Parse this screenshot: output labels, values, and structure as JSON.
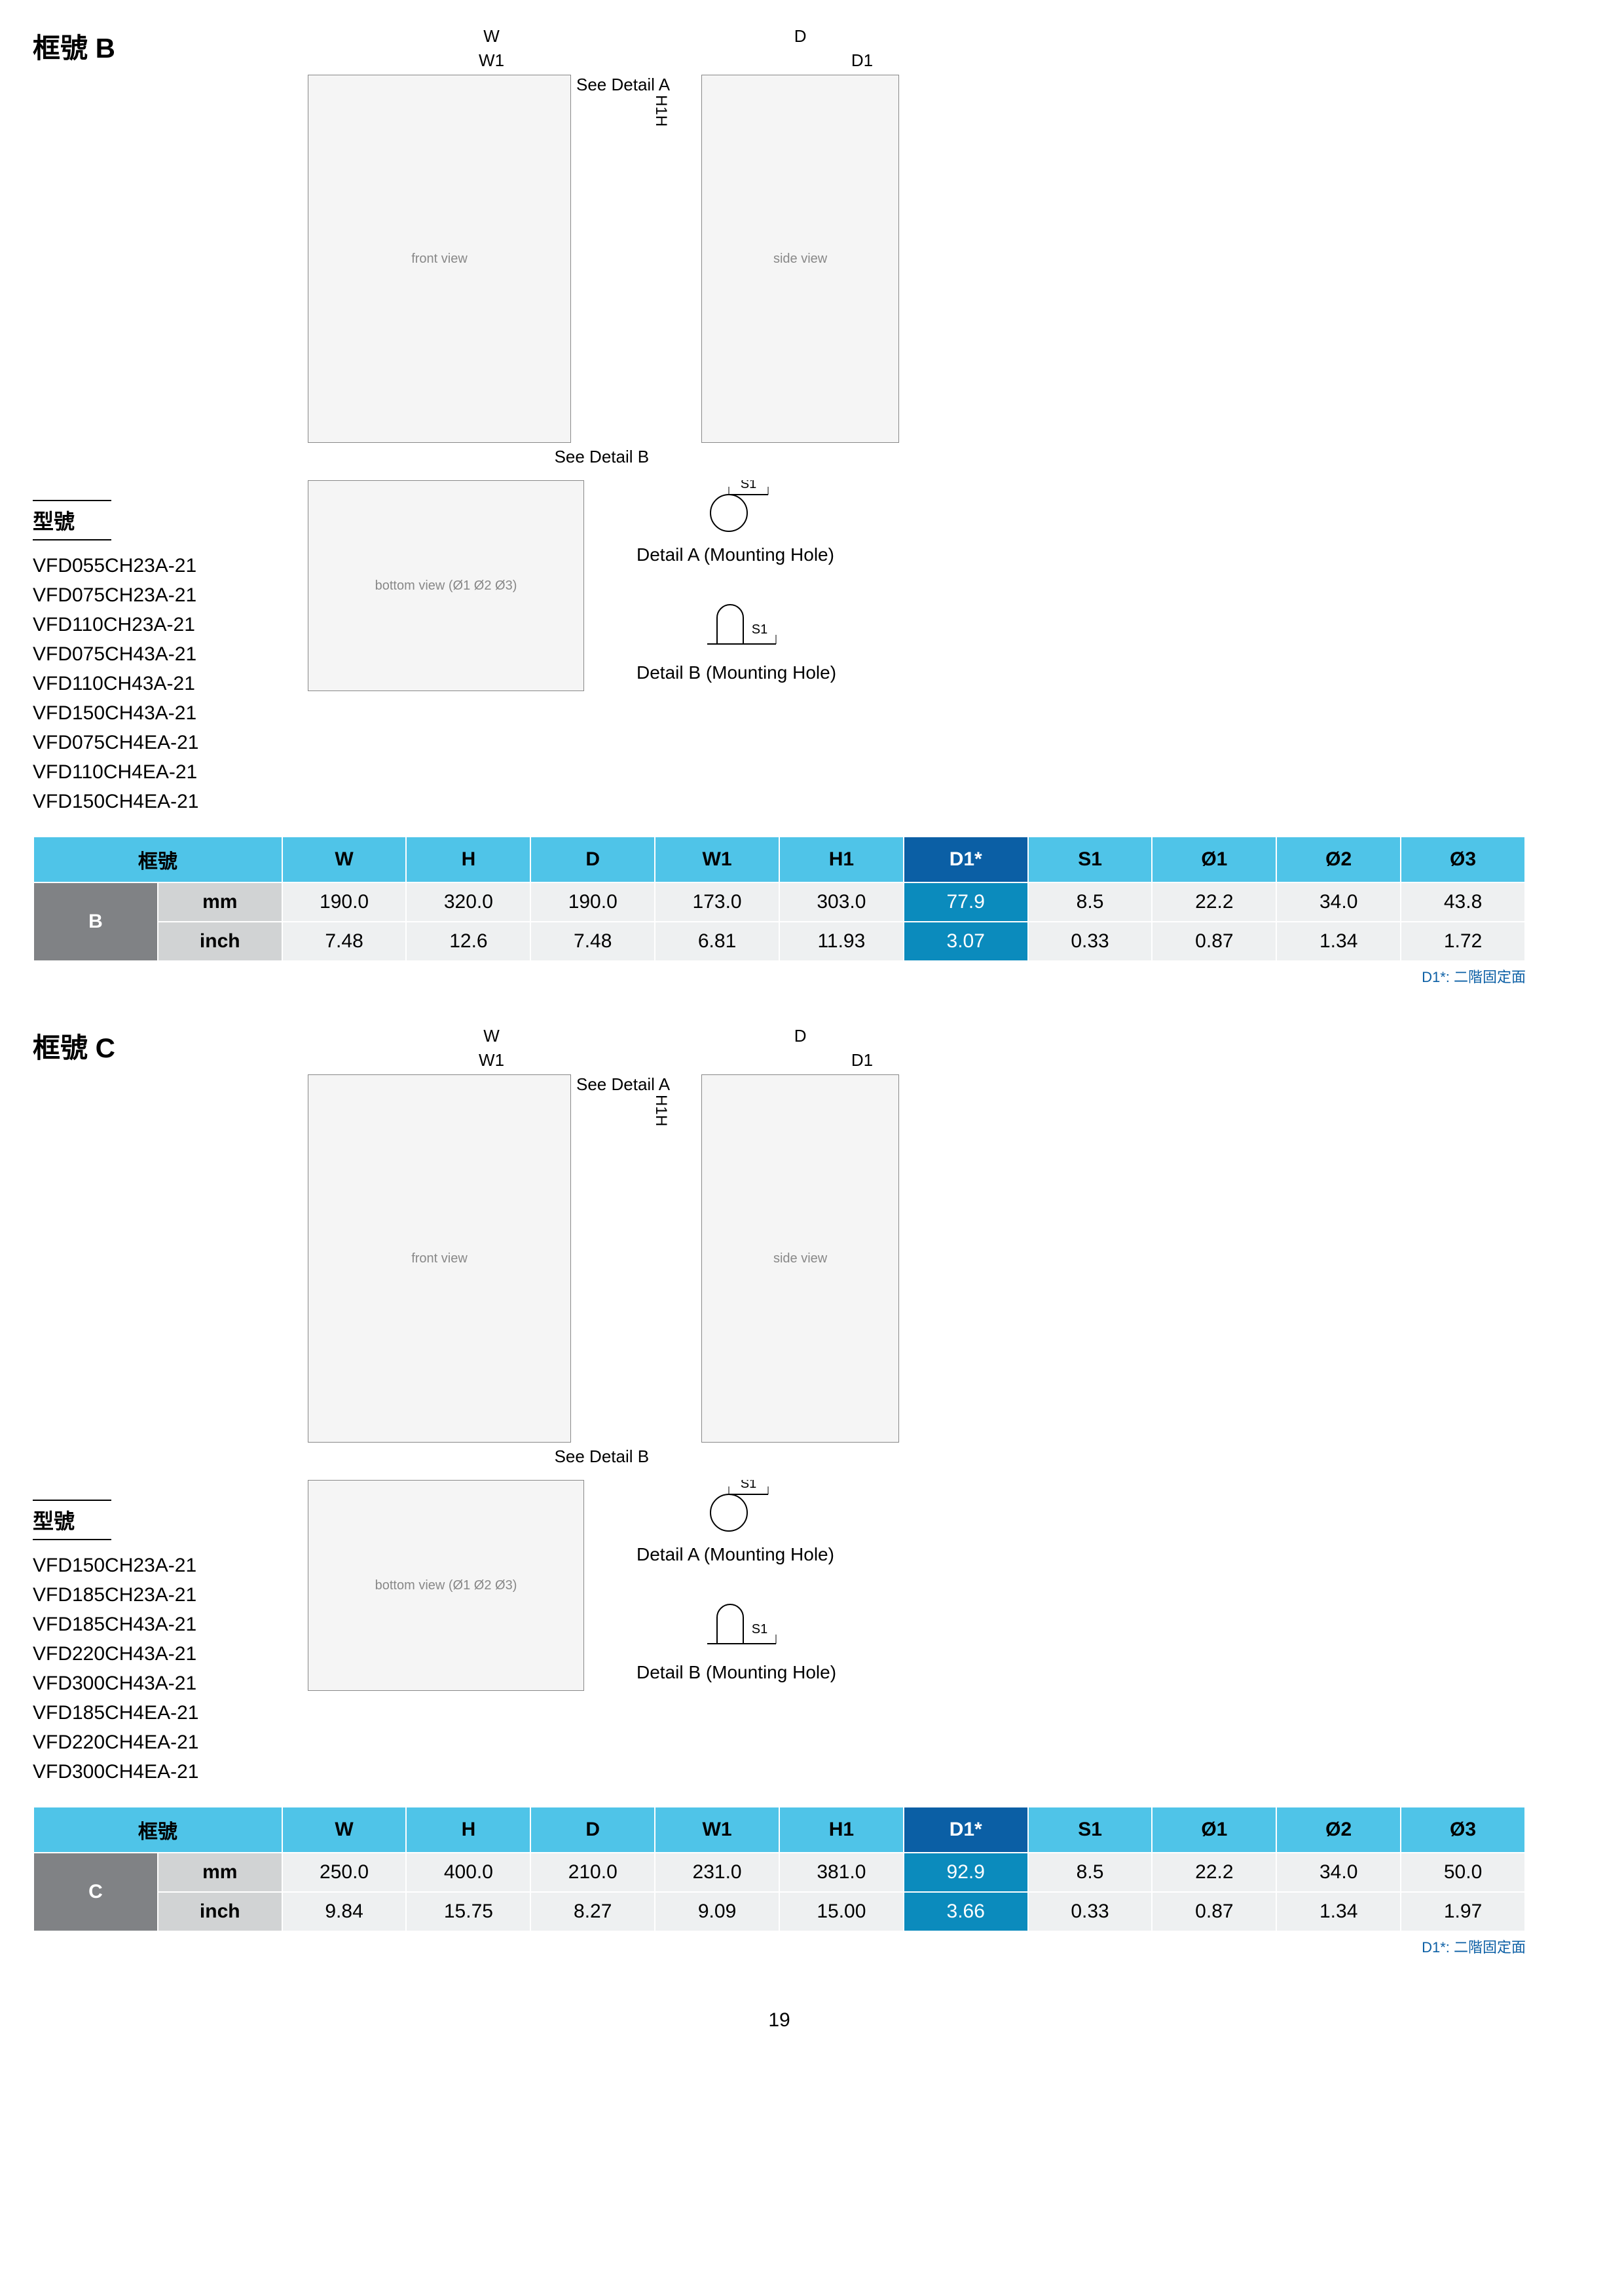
{
  "page_number": "19",
  "footnote": "D1*: 二階固定面",
  "labels": {
    "model_heading": "型號",
    "see_detail_a": "See Detail A",
    "see_detail_b": "See Detail B",
    "detail_a": "Detail A (Mounting Hole)",
    "detail_b": "Detail B (Mounting Hole)",
    "W": "W",
    "W1": "W1",
    "D": "D",
    "D1": "D1",
    "H": "H",
    "H1": "H1",
    "S1": "S1"
  },
  "columns": [
    "框號",
    "W",
    "H",
    "D",
    "W1",
    "H1",
    "D1*",
    "S1",
    "Ø1",
    "Ø2",
    "Ø3"
  ],
  "frames": [
    {
      "id": "B",
      "title": "框號 B",
      "models": [
        "VFD055CH23A-21",
        "VFD075CH23A-21",
        "VFD110CH23A-21",
        "VFD075CH43A-21",
        "VFD110CH43A-21",
        "VFD150CH43A-21",
        "VFD075CH4EA-21",
        "VFD110CH4EA-21",
        "VFD150CH4EA-21"
      ],
      "rows": [
        {
          "unit": "mm",
          "vals": [
            "190.0",
            "320.0",
            "190.0",
            "173.0",
            "303.0",
            "77.9",
            "8.5",
            "22.2",
            "34.0",
            "43.8"
          ]
        },
        {
          "unit": "inch",
          "vals": [
            "7.48",
            "12.6",
            "7.48",
            "6.81",
            "11.93",
            "3.07",
            "0.33",
            "0.87",
            "1.34",
            "1.72"
          ]
        }
      ]
    },
    {
      "id": "C",
      "title": "框號 C",
      "models": [
        "VFD150CH23A-21",
        "VFD185CH23A-21",
        "VFD185CH43A-21",
        "VFD220CH43A-21",
        "VFD300CH43A-21",
        "VFD185CH4EA-21",
        "VFD220CH4EA-21",
        "VFD300CH4EA-21"
      ],
      "rows": [
        {
          "unit": "mm",
          "vals": [
            "250.0",
            "400.0",
            "210.0",
            "231.0",
            "381.0",
            "92.9",
            "8.5",
            "22.2",
            "34.0",
            "50.0"
          ]
        },
        {
          "unit": "inch",
          "vals": [
            "9.84",
            "15.75",
            "8.27",
            "9.09",
            "15.00",
            "3.66",
            "0.33",
            "0.87",
            "1.34",
            "1.97"
          ]
        }
      ]
    }
  ]
}
